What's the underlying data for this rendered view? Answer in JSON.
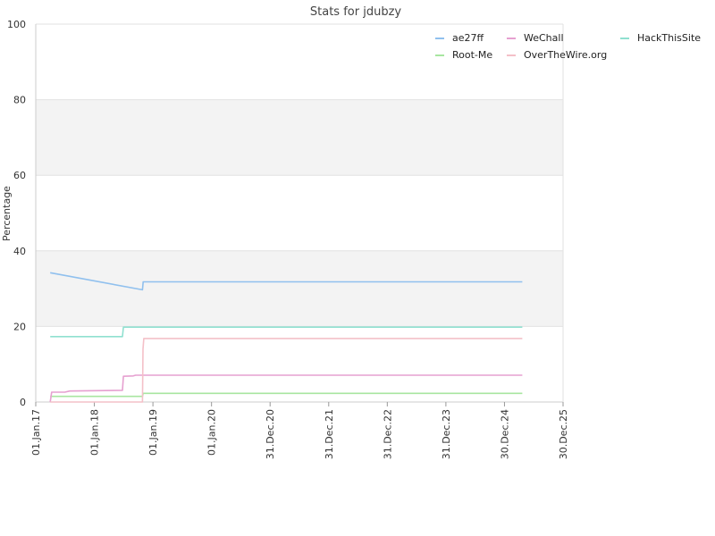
{
  "chart_data": {
    "type": "line",
    "title": "Stats for jdubzy",
    "xlabel": "",
    "ylabel": "Percentage",
    "ylim": [
      0,
      100
    ],
    "yticks": [
      0,
      20,
      40,
      60,
      80,
      100
    ],
    "xlim": [
      "2017-01-01",
      "2025-12-30"
    ],
    "xticks": [
      {
        "date": "2017-01-01",
        "label": "01.Jan.17"
      },
      {
        "date": "2018-01-01",
        "label": "01.Jan.18"
      },
      {
        "date": "2019-01-01",
        "label": "01.Jan.19"
      },
      {
        "date": "2020-01-01",
        "label": "01.Jan.20"
      },
      {
        "date": "2020-12-31",
        "label": "31.Dec.20"
      },
      {
        "date": "2021-12-31",
        "label": "31.Dec.21"
      },
      {
        "date": "2022-12-31",
        "label": "31.Dec.22"
      },
      {
        "date": "2023-12-31",
        "label": "31.Dec.23"
      },
      {
        "date": "2024-12-30",
        "label": "30.Dec.24"
      },
      {
        "date": "2025-12-30",
        "label": "30.Dec.25"
      }
    ],
    "grid": true,
    "alternating_bands": true,
    "legend_position": "top-right",
    "series": [
      {
        "name": "ae27ff",
        "color": "#90c0ee",
        "points": [
          [
            "2017-04-01",
            34.2
          ],
          [
            "2018-10-28",
            29.7
          ],
          [
            "2018-11-01",
            31.8
          ],
          [
            "2025-04-20",
            31.8
          ]
        ]
      },
      {
        "name": "Root-Me",
        "color": "#a8e6a0",
        "points": [
          [
            "2017-04-01",
            1.5
          ],
          [
            "2018-10-28",
            1.5
          ],
          [
            "2018-11-01",
            2.3
          ],
          [
            "2025-04-20",
            2.3
          ]
        ]
      },
      {
        "name": "WeChall",
        "color": "#e6a0d0",
        "points": [
          [
            "2017-04-01",
            0.0
          ],
          [
            "2017-04-10",
            2.6
          ],
          [
            "2017-07-01",
            2.6
          ],
          [
            "2017-08-01",
            2.9
          ],
          [
            "2018-06-25",
            3.1
          ],
          [
            "2018-07-01",
            6.8
          ],
          [
            "2018-09-01",
            6.9
          ],
          [
            "2018-09-15",
            7.1
          ],
          [
            "2025-04-20",
            7.1
          ]
        ]
      },
      {
        "name": "OverTheWire.org",
        "color": "#f4c0c8",
        "points": [
          [
            "2017-04-01",
            0.0
          ],
          [
            "2018-10-28",
            0.0
          ],
          [
            "2018-10-31",
            14.0
          ],
          [
            "2018-11-05",
            16.8
          ],
          [
            "2025-04-20",
            16.8
          ]
        ]
      },
      {
        "name": "HackThisSite",
        "color": "#90e0d0",
        "points": [
          [
            "2017-04-01",
            17.3
          ],
          [
            "2018-06-25",
            17.3
          ],
          [
            "2018-07-01",
            19.8
          ],
          [
            "2025-04-20",
            19.8
          ]
        ]
      }
    ]
  }
}
